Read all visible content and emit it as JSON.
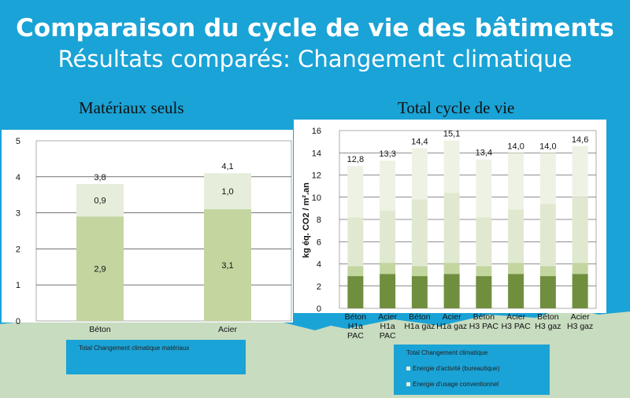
{
  "slide": {
    "title": "Comparaison du cycle de vie des bâtiments",
    "subtitle": "Résultats comparés: Changement climatique"
  },
  "colors": {
    "background": "#1aa3d6",
    "dark_green": "#6f8f3e",
    "mid_green": "#c3d6a0",
    "light_green": "#e6eedb",
    "plot_bg": "#ffffff",
    "city_silhouette": "#c8dcc0"
  },
  "chart_data": [
    {
      "type": "bar",
      "stacked": true,
      "title": "Matériaux seuls",
      "categories": [
        "Béton",
        "Acier"
      ],
      "series": [
        {
          "values": [
            2.9,
            3.1
          ],
          "labels": [
            "2,9",
            "3,1"
          ],
          "color": "#c3d6a0"
        },
        {
          "values": [
            0.9,
            1.0
          ],
          "labels": [
            "0,9",
            "1,0"
          ],
          "color": "#e6eedb"
        }
      ],
      "totals": [
        "3,8",
        "4,1"
      ],
      "ylim": [
        0,
        5
      ],
      "yticks": [
        "0",
        "1",
        "2",
        "3",
        "4",
        "5"
      ],
      "legend": [
        "Total Changement climatique matériaux"
      ],
      "grid": true
    },
    {
      "type": "bar",
      "stacked": true,
      "title": "Total cycle de vie",
      "categories": [
        [
          "Béton",
          "H1a",
          "PAC"
        ],
        [
          "Acier",
          "H1a",
          "PAC"
        ],
        [
          "Béton",
          "H1a gaz"
        ],
        [
          "Acier",
          "H1a gaz"
        ],
        [
          "Béton",
          "H3 PAC"
        ],
        [
          "Acier",
          "H3 PAC"
        ],
        [
          "Béton",
          "H3 gaz"
        ],
        [
          "Acier",
          "H3 gaz"
        ]
      ],
      "series": [
        {
          "name": "Total Changement climatique",
          "values": [
            2.9,
            3.1,
            2.9,
            3.1,
            2.9,
            3.1,
            2.9,
            3.1
          ],
          "color": "#6f8f3e"
        },
        {
          "name": "Energie d'activité (bureautique)",
          "values": [
            0.9,
            1.0,
            0.9,
            1.0,
            0.9,
            1.0,
            0.9,
            1.0
          ],
          "color": "#c3d6a0"
        },
        {
          "values": [
            4.4,
            4.7,
            6.0,
            6.3,
            4.4,
            4.8,
            5.6,
            5.9
          ],
          "color": "#e0e9d0"
        },
        {
          "name": "Energie d'usage conventionnel",
          "values": [
            4.6,
            4.5,
            4.6,
            4.7,
            5.2,
            5.1,
            4.6,
            4.6
          ],
          "color": "#edf2e4"
        }
      ],
      "totals": [
        "12,8",
        "13,3",
        "14,4",
        "15,1",
        "13,4",
        "14,0",
        "14,0",
        "14,6"
      ],
      "ylabel": "kg éq. CO2 / m².an",
      "ylim": [
        0,
        16
      ],
      "yticks": [
        "0",
        "2",
        "4",
        "6",
        "8",
        "10",
        "12",
        "14",
        "16"
      ],
      "grid": true,
      "legend_placement": "bottom"
    }
  ]
}
